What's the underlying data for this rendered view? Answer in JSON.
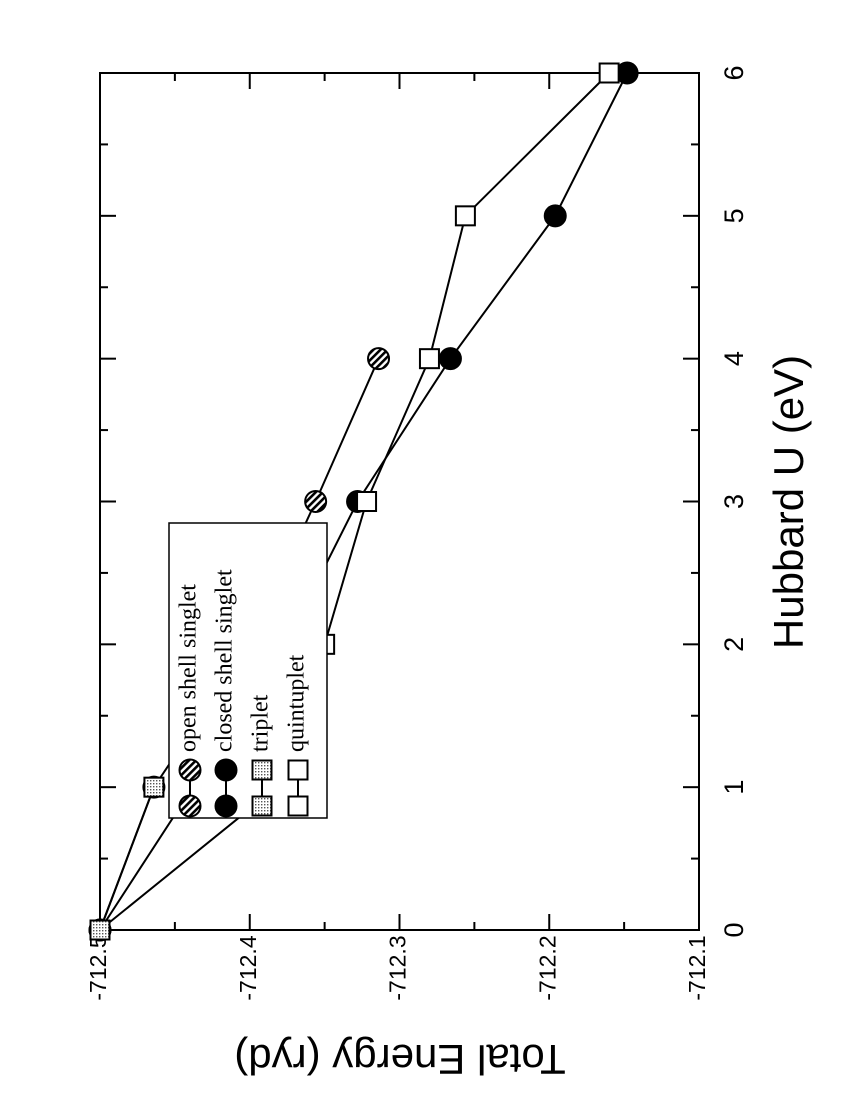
{
  "chart_data": {
    "type": "line",
    "xlabel": "Hubbard U (eV)",
    "ylabel": "Total Energy (ryd)",
    "xlim": [
      0,
      6
    ],
    "ylim": [
      -712.5,
      -712.1
    ],
    "xticks": [
      "0",
      "1",
      "2",
      "3",
      "4",
      "5",
      "6"
    ],
    "yticks": [
      "-712.5",
      "-712.4",
      "-712.3",
      "-712.2",
      "-712.1"
    ],
    "x_tick_values": [
      0,
      1,
      2,
      3,
      4,
      5,
      6
    ],
    "y_tick_values": [
      -712.5,
      -712.4,
      -712.3,
      -712.2,
      -712.1
    ],
    "legend_position": "top-left",
    "grid": false,
    "series": [
      {
        "name": "open shell singlet",
        "marker": "hatched-circle",
        "x": [
          0,
          1,
          2,
          3,
          4
        ],
        "y": [
          -712.5,
          -712.464,
          -712.4,
          -712.356,
          -712.314
        ]
      },
      {
        "name": "closed shell singlet",
        "marker": "filled-circle",
        "x": [
          0,
          2,
          3,
          4,
          5,
          6
        ],
        "y": [
          -712.5,
          -712.376,
          -712.328,
          -712.266,
          -712.196,
          -712.148
        ]
      },
      {
        "name": "triplet",
        "marker": "dotted-square",
        "x": [
          0,
          1
        ],
        "y": [
          -712.5,
          -712.464
        ]
      },
      {
        "name": "quintuplet",
        "marker": "open-square",
        "x": [
          0,
          1,
          2,
          3,
          4,
          5,
          6
        ],
        "y": [
          -712.5,
          -712.382,
          -712.35,
          -712.322,
          -712.28,
          -712.256,
          -712.16
        ]
      }
    ]
  }
}
